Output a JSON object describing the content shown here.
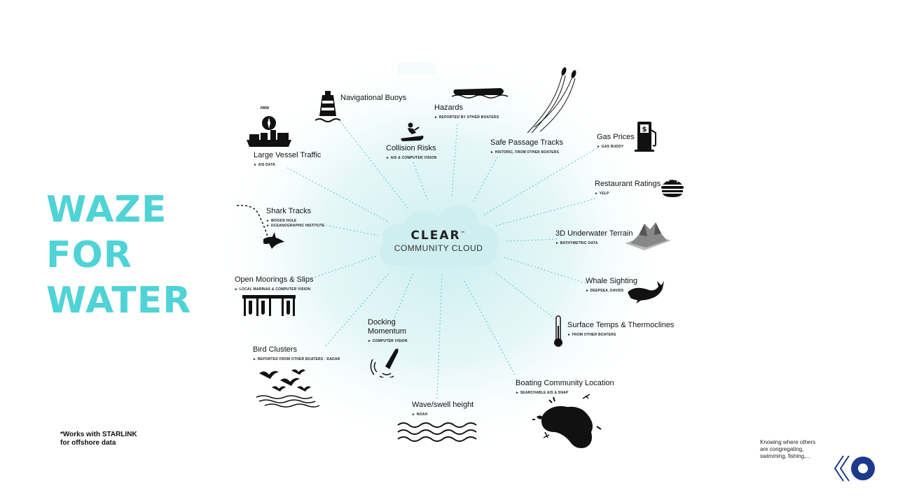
{
  "slide": {
    "title_lines": [
      "WAZE",
      "FOR",
      "WATER"
    ],
    "footnote_line1": "*Works with STARLINK",
    "footnote_line2": "for offshore data",
    "side_note_line1": "Knowing where others",
    "side_note_line2": "are congregating,",
    "side_note_line3": "swimming, fishing,..."
  },
  "center": {
    "brand": "CLEAR",
    "brand_mark": "™",
    "subtitle": "COMMUNITY CLOUD"
  },
  "nodes": {
    "nav_buoys": {
      "label": "Navigational Buoys",
      "sub": ""
    },
    "hazards": {
      "label": "Hazards",
      "sub": "REPORTED BY OTHER BOATERS"
    },
    "collision": {
      "label": "Collision Risks",
      "sub": "AIS & COMPUTER VISION"
    },
    "safe_passage": {
      "label": "Safe Passage Tracks",
      "sub": "HISTORIC, FROM OTHER BOATERS"
    },
    "gas": {
      "label": "Gas Prices",
      "sub": "GAS BUDDY"
    },
    "restaurant": {
      "label": "Restaurant Ratings",
      "sub": "YELP"
    },
    "terrain": {
      "label": "3D Underwater Terrain",
      "sub": "BATHYMETRIC DATA"
    },
    "whale": {
      "label": "Whale Sighting",
      "sub": "DEEPSEA_DAVID5"
    },
    "temps": {
      "label": "Surface Temps & Thermoclines",
      "sub": "FROM OTHER BOATERS"
    },
    "community": {
      "label": "Boating Community Location",
      "sub": "SEARCHABLE AIS & SNAP"
    },
    "wave": {
      "label": "Wave/swell height",
      "sub": "NOAH"
    },
    "docking": {
      "label_line1": "Docking",
      "label_line2": "Momentum",
      "sub": "COMPUTER VISION"
    },
    "birds": {
      "label": "Bird Clusters",
      "sub": "REPORTED FROM OTHER BOATERS - RADAR"
    },
    "moorings": {
      "label": "Open Moorings & Slips",
      "sub": "LOCAL MARINAS & COMPUTER VISION"
    },
    "shark": {
      "label": "Shark Tracks",
      "sub_line1": "WOODS HOLE",
      "sub_line2": "OCEANOGRAPHIC INSTITUTE"
    },
    "vessel": {
      "label": "Large Vessel Traffic",
      "sub": "AIS DATA",
      "compass_label": "NNW"
    }
  },
  "colors": {
    "title": "#4fd3d6",
    "cloud": "#cfeef0",
    "glow": "#d8f2f3",
    "connector": "#6fcfd3",
    "logo": "#1c3a8c"
  }
}
